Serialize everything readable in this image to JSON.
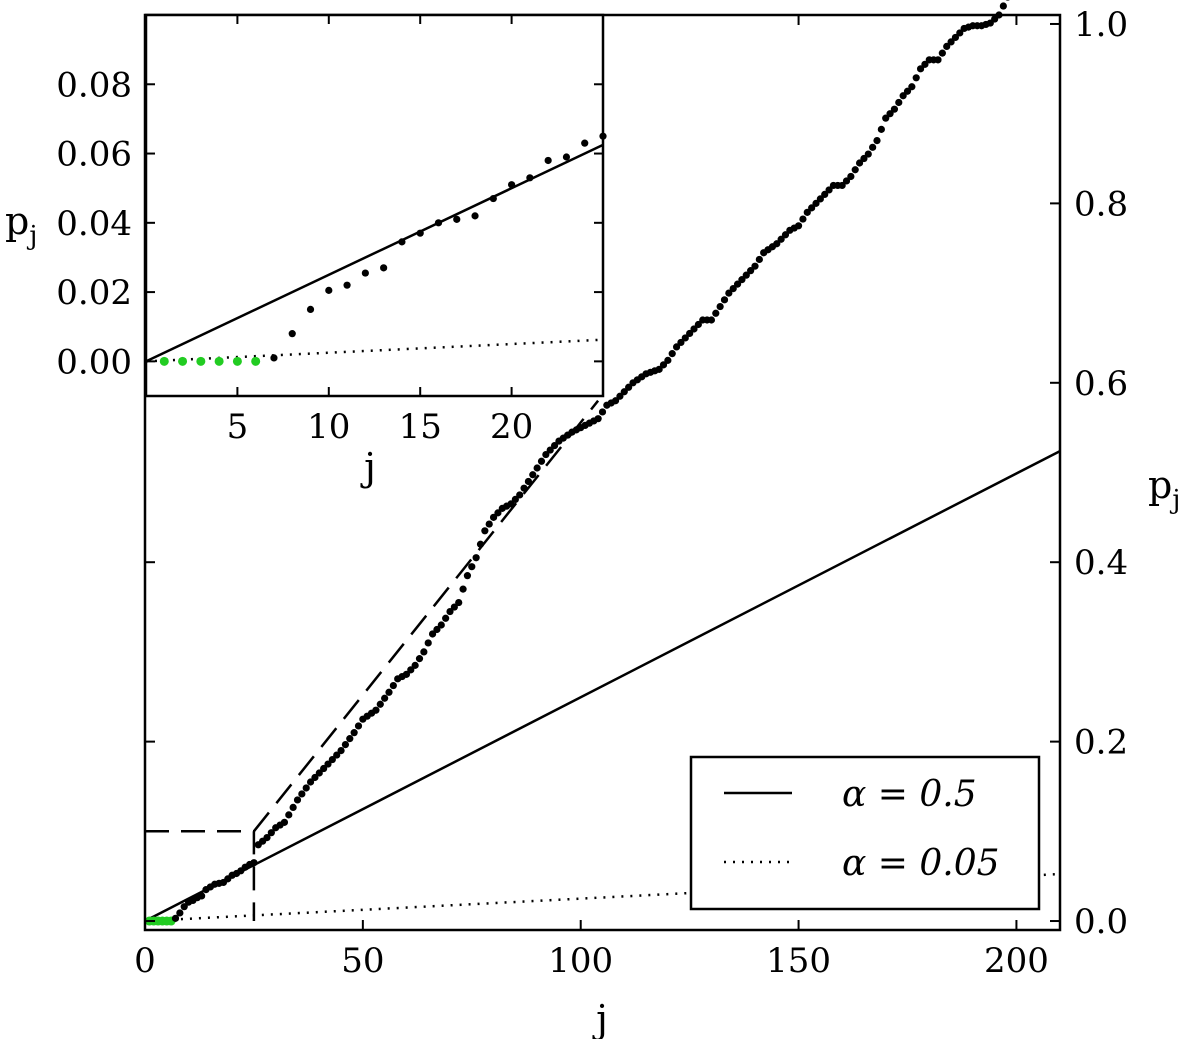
{
  "chart_data": [
    {
      "type": "scatter",
      "panel": "main",
      "xlabel": "j",
      "ylabel": "p",
      "ylabel_subscript": "j",
      "ylabel_side": "right",
      "xlim": [
        0,
        210
      ],
      "ylim": [
        -0.01,
        1.01
      ],
      "xticks": [
        0,
        50,
        100,
        150,
        200
      ],
      "xtick_labels": [
        "0",
        "50",
        "100",
        "150",
        "200"
      ],
      "yticks": [
        0.0,
        0.2,
        0.4,
        0.6,
        0.8,
        1.0
      ],
      "ytick_labels": [
        "0.0",
        "0.2",
        "0.4",
        "0.6",
        "0.8",
        "1.0"
      ],
      "grid": false,
      "legend_position": "bottom-right",
      "legend": [
        {
          "label": "α = 0.5",
          "style": "solid"
        },
        {
          "label": "α = 0.05",
          "style": "dotted"
        }
      ],
      "lines": [
        {
          "name": "α = 0.5",
          "style": "solid",
          "x": [
            0,
            210
          ],
          "y": [
            0,
            0.5238
          ]
        },
        {
          "name": "α = 0.05",
          "style": "dotted",
          "x": [
            0,
            210
          ],
          "y": [
            0,
            0.0524
          ]
        },
        {
          "style": "dashed",
          "role": "zoom-box",
          "x": [
            0,
            25,
            25
          ],
          "y": [
            0.1,
            0.1,
            0
          ]
        },
        {
          "style": "dashed",
          "role": "zoom-connector",
          "x": [
            25,
            104
          ],
          "y": [
            0.1,
            0.58
          ]
        }
      ],
      "series": [
        {
          "role": "rejected",
          "color": "#22cc22",
          "x": [
            1,
            2,
            3,
            4,
            5,
            6
          ],
          "y": [
            0,
            0,
            0,
            0,
            0,
            0
          ]
        },
        {
          "role": "sorted-p-values",
          "color": "#000000",
          "anchors": {
            "x": [
              7,
              8,
              9,
              10,
              11,
              12,
              13,
              14,
              15,
              16,
              17,
              18,
              19,
              20,
              21,
              22,
              23,
              24,
              25,
              26,
              28,
              30,
              32,
              35,
              38,
              40,
              42,
              45,
              48,
              50,
              53,
              56,
              58,
              60,
              62,
              64,
              66,
              68,
              70,
              72,
              74,
              76,
              78,
              80,
              82,
              84,
              86,
              88,
              90,
              92,
              95,
              98,
              100,
              102,
              104,
              106,
              108,
              110,
              112,
              115,
              118,
              120,
              122,
              125,
              128,
              130,
              132,
              134,
              136,
              138,
              140,
              142,
              145,
              148,
              150,
              152,
              154,
              156,
              158,
              160,
              162,
              164,
              166,
              168,
              170,
              172,
              174,
              176,
              178,
              180,
              182,
              184,
              186,
              188,
              190,
              192,
              194,
              196,
              198,
              200,
              201
            ],
            "y": [
              0.003,
              0.009,
              0.016,
              0.021,
              0.023,
              0.026,
              0.028,
              0.035,
              0.038,
              0.041,
              0.042,
              0.043,
              0.047,
              0.051,
              0.053,
              0.056,
              0.06,
              0.063,
              0.065,
              0.085,
              0.093,
              0.104,
              0.11,
              0.135,
              0.155,
              0.165,
              0.175,
              0.19,
              0.21,
              0.225,
              0.235,
              0.255,
              0.27,
              0.275,
              0.285,
              0.3,
              0.32,
              0.33,
              0.345,
              0.355,
              0.385,
              0.405,
              0.435,
              0.45,
              0.46,
              0.465,
              0.475,
              0.49,
              0.505,
              0.52,
              0.535,
              0.545,
              0.55,
              0.555,
              0.56,
              0.575,
              0.58,
              0.59,
              0.6,
              0.61,
              0.615,
              0.625,
              0.64,
              0.655,
              0.67,
              0.67,
              0.685,
              0.7,
              0.71,
              0.72,
              0.73,
              0.745,
              0.755,
              0.77,
              0.775,
              0.79,
              0.8,
              0.81,
              0.82,
              0.82,
              0.83,
              0.845,
              0.855,
              0.87,
              0.895,
              0.905,
              0.92,
              0.93,
              0.95,
              0.96,
              0.96,
              0.975,
              0.985,
              0.995,
              0.998,
              0.998,
              1.001,
              1.01,
              1.03,
              1.055,
              1.075
            ]
          }
        }
      ]
    },
    {
      "type": "scatter",
      "panel": "inset",
      "xlabel": "j",
      "ylabel": "p",
      "ylabel_subscript": "j",
      "ylabel_side": "left",
      "xlim": [
        0,
        25
      ],
      "ylim": [
        -0.01,
        0.1
      ],
      "xticks": [
        5,
        10,
        15,
        20
      ],
      "xtick_labels": [
        "5",
        "10",
        "15",
        "20"
      ],
      "yticks": [
        0.0,
        0.02,
        0.04,
        0.06,
        0.08
      ],
      "ytick_labels": [
        "0.00",
        "0.02",
        "0.04",
        "0.06",
        "0.08"
      ],
      "grid": false,
      "lines": [
        {
          "name": "α = 0.5",
          "style": "solid",
          "x": [
            0,
            25
          ],
          "y": [
            0,
            0.0625
          ]
        },
        {
          "name": "α = 0.05",
          "style": "dotted",
          "x": [
            0,
            25
          ],
          "y": [
            0,
            0.00625
          ]
        }
      ],
      "series": [
        {
          "role": "rejected",
          "color": "#22cc22",
          "x": [
            1,
            2,
            3,
            4,
            5,
            6
          ],
          "y": [
            0,
            0,
            0,
            0,
            0,
            0
          ]
        },
        {
          "role": "sorted-p-values",
          "color": "#000000",
          "x": [
            7,
            8,
            9,
            10,
            11,
            12,
            13,
            14,
            15,
            16,
            17,
            18,
            19,
            20,
            21,
            22,
            23,
            24,
            25
          ],
          "y": [
            0.001,
            0.008,
            0.015,
            0.0205,
            0.022,
            0.0255,
            0.027,
            0.0345,
            0.037,
            0.04,
            0.041,
            0.042,
            0.047,
            0.051,
            0.053,
            0.058,
            0.059,
            0.063,
            0.065
          ]
        }
      ]
    }
  ]
}
